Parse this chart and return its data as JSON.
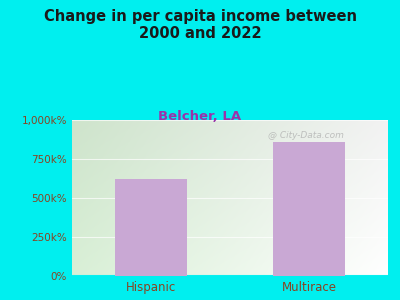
{
  "title": "Change in per capita income between\n2000 and 2022",
  "subtitle": "Belcher, LA",
  "categories": [
    "Hispanic",
    "Multirace"
  ],
  "values": [
    625,
    862
  ],
  "ylim": [
    0,
    1000
  ],
  "yticks": [
    0,
    250,
    500,
    750,
    1000
  ],
  "ytick_labels": [
    "0%",
    "250k%",
    "500k%",
    "750k%",
    "1,000k%"
  ],
  "bar_color": "#c9a8d4",
  "background_outer": "#00efef",
  "background_inner_left": "#d8f0c8",
  "background_inner_right": "#f0f8ee",
  "title_color": "#1a1a1a",
  "subtitle_color": "#9933aa",
  "tick_label_color": "#884422",
  "axis_label_color": "#884422",
  "title_fontsize": 10.5,
  "subtitle_fontsize": 9.5,
  "bar_width": 0.45,
  "watermark": "@ City-Data.com"
}
